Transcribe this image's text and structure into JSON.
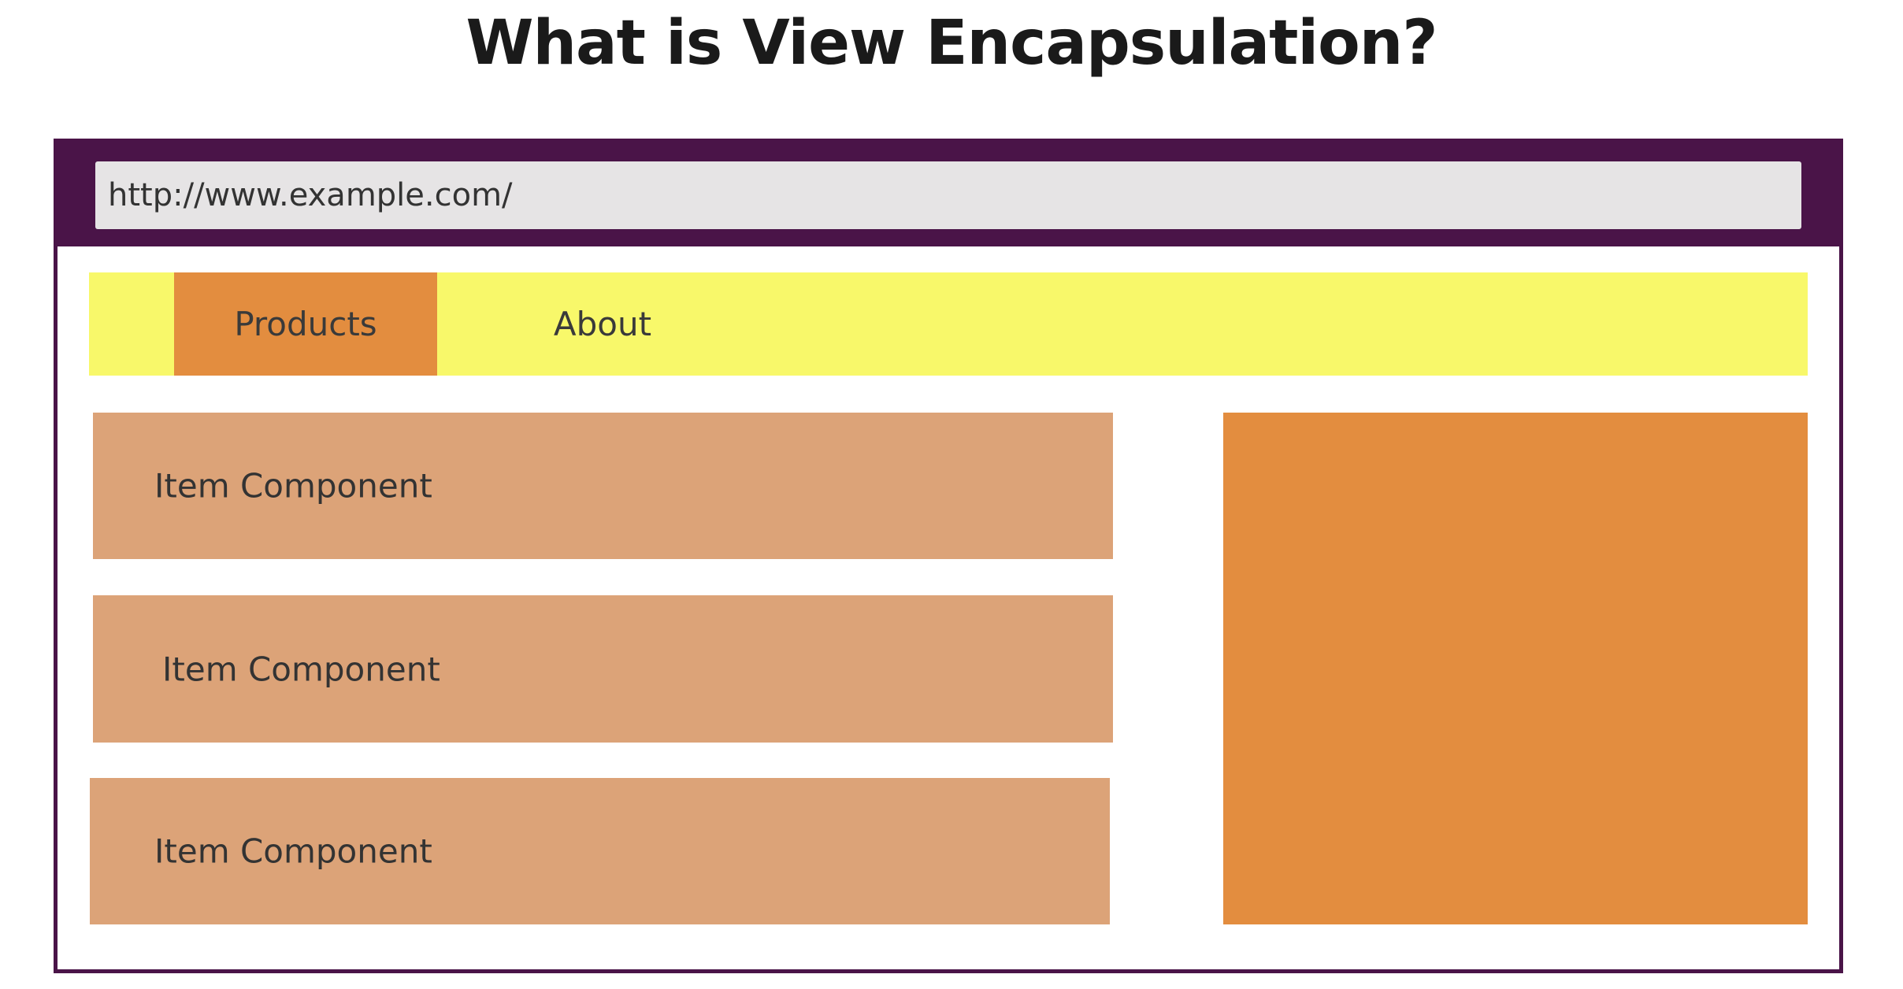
{
  "title": "What is View Encapsulation?",
  "browser": {
    "url": "http://www.example.com/"
  },
  "nav": {
    "items": [
      {
        "label": "Products",
        "active": true
      },
      {
        "label": "About",
        "active": false
      }
    ]
  },
  "items": [
    {
      "label": "Item Component"
    },
    {
      "label": "Item Component"
    },
    {
      "label": "Item Component"
    }
  ],
  "colors": {
    "browser_frame": "#4a1448",
    "url_field": "#e6e4e5",
    "navbar": "#f8f86a",
    "active_nav": "#e38d3f",
    "item": "#dca378",
    "sidebar": "#e38d3f"
  }
}
